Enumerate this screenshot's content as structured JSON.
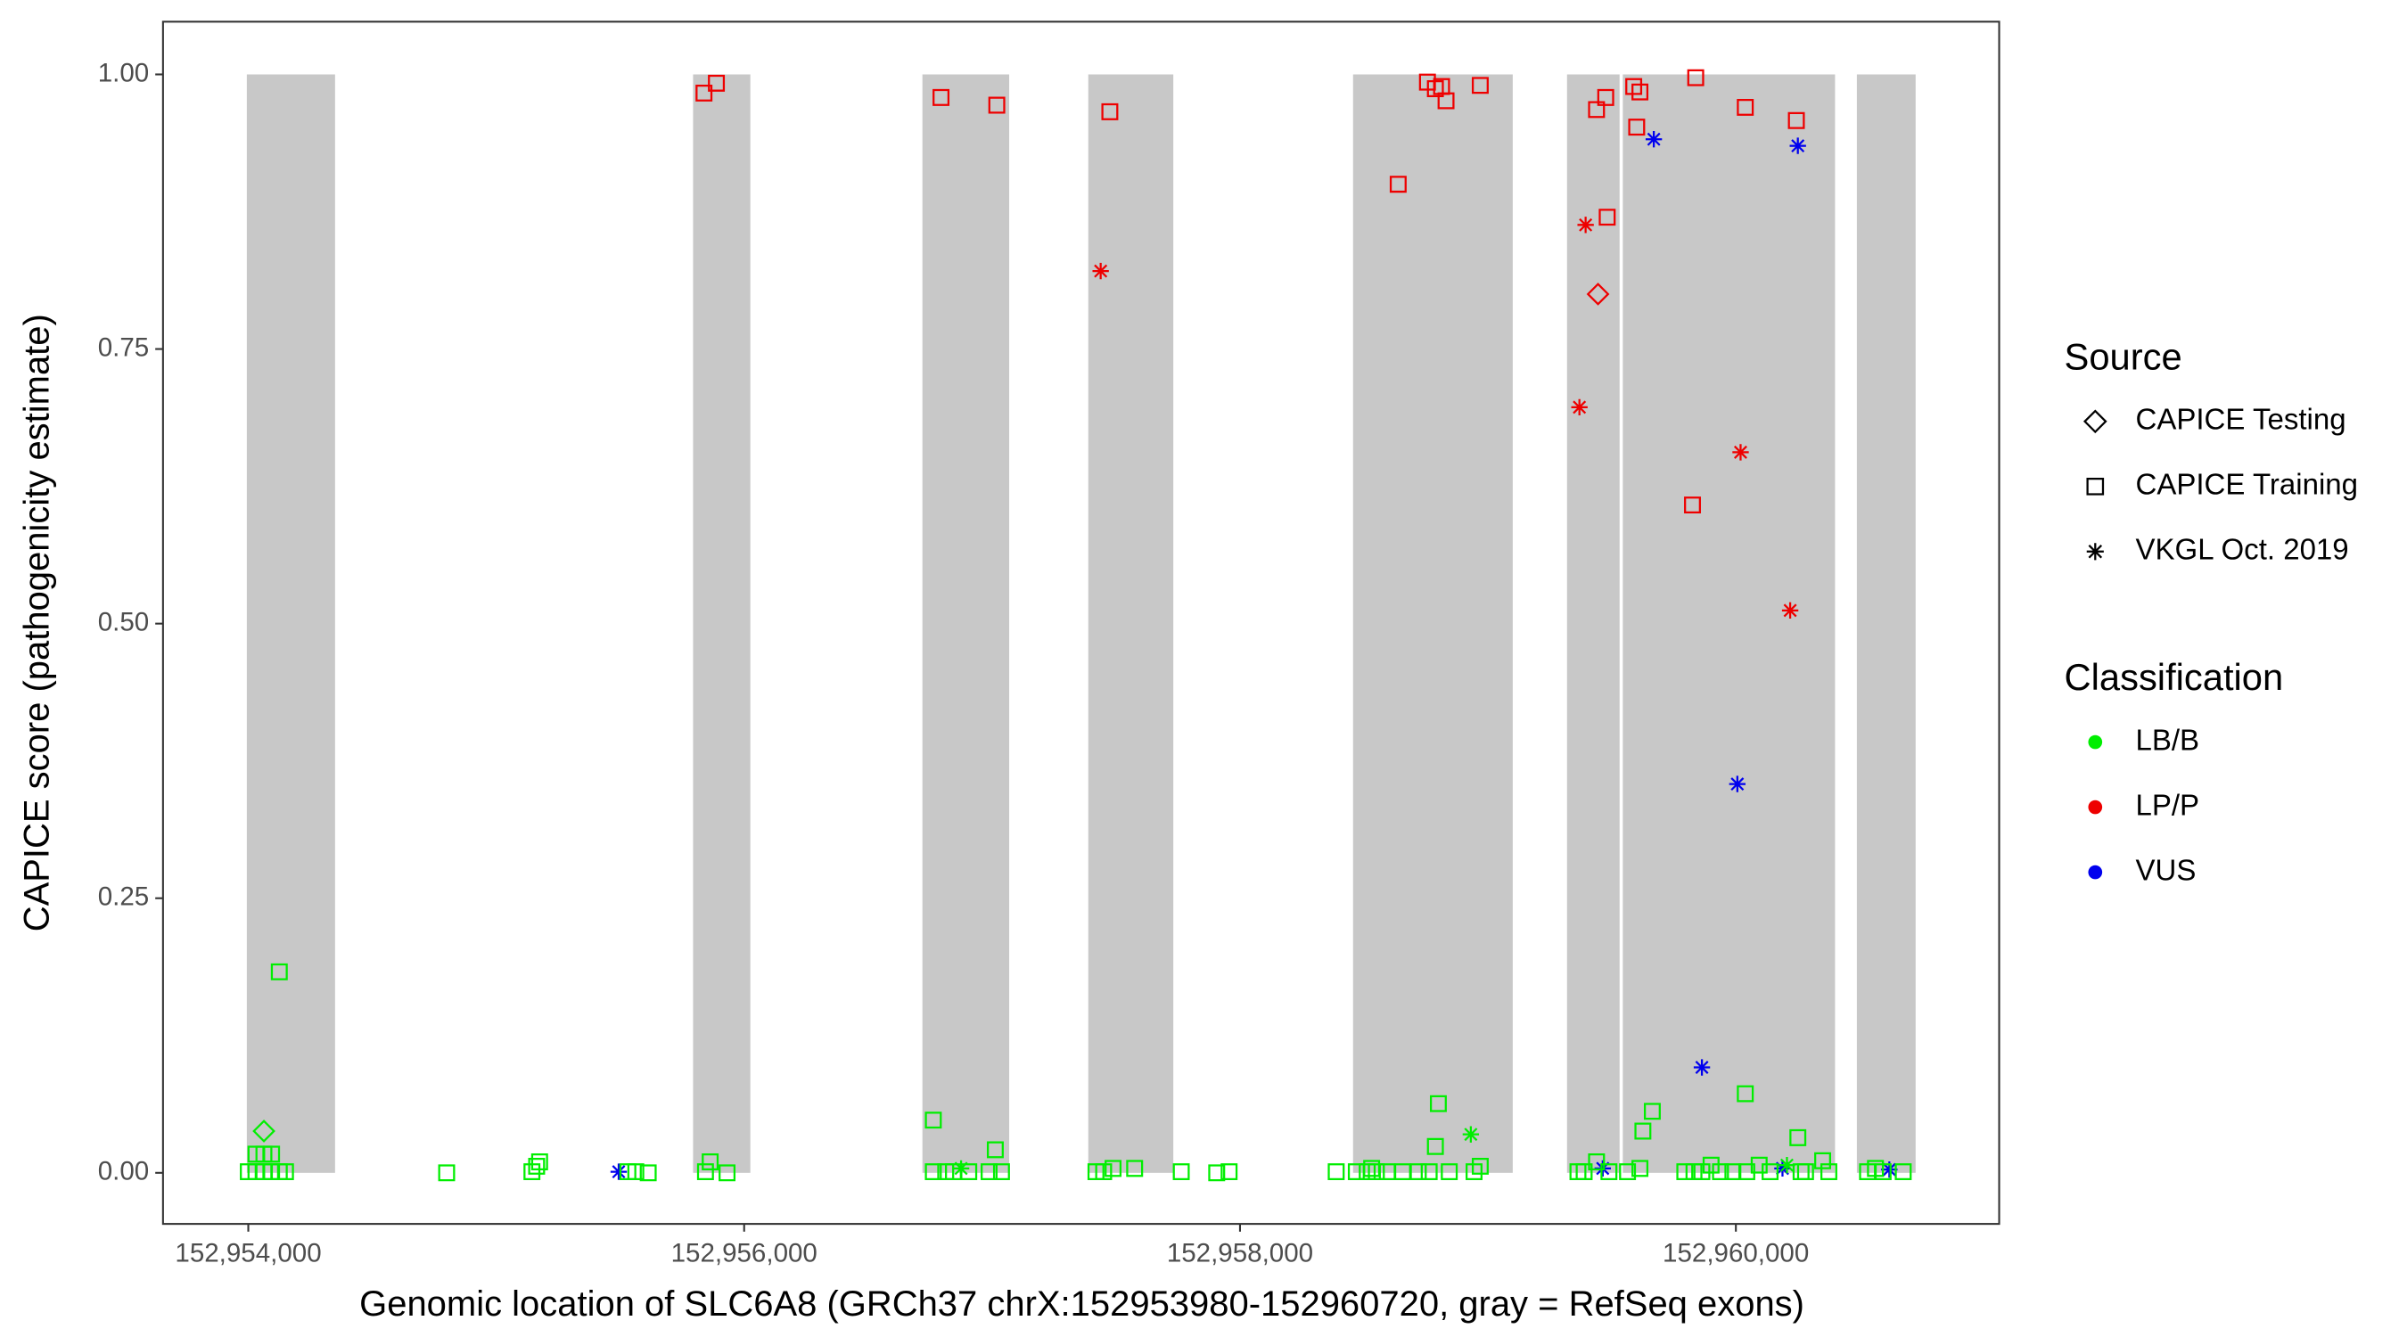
{
  "chart_data": {
    "type": "scatter",
    "xlabel": "Genomic location of SLC6A8 (GRCh37 chrX:152953980-152960720, gray = RefSeq exons)",
    "ylabel": "CAPICE score (pathogenicity estimate)",
    "xlim": [
      152953656,
      152961062
    ],
    "ylim": [
      -0.0465,
      1.048
    ],
    "xticks": [
      {
        "value": 152954000,
        "label": "152,954,000"
      },
      {
        "value": 152956000,
        "label": "152,956,000"
      },
      {
        "value": 152958000,
        "label": "152,958,000"
      },
      {
        "value": 152960000,
        "label": "152,960,000"
      }
    ],
    "yticks": [
      {
        "value": 0,
        "label": "0.00"
      },
      {
        "value": 0.25,
        "label": "0.25"
      },
      {
        "value": 0.5,
        "label": "0.50"
      },
      {
        "value": 0.75,
        "label": "0.75"
      },
      {
        "value": 1,
        "label": "1.00"
      }
    ],
    "exon_color": "#c8c8c8",
    "exons": [
      [
        152953994,
        152954350
      ],
      [
        152955794,
        152956025
      ],
      [
        152956719,
        152957069
      ],
      [
        152957388,
        152957731
      ],
      [
        152958456,
        152959100
      ],
      [
        152959319,
        152959531
      ],
      [
        152959544,
        152960400
      ],
      [
        152960488,
        152960725
      ]
    ],
    "legends": [
      {
        "title": "Source",
        "items": [
          {
            "label": "CAPICE Testing",
            "shape": "diamond"
          },
          {
            "label": "CAPICE Training",
            "shape": "square"
          },
          {
            "label": "VKGL Oct. 2019",
            "shape": "asterisk"
          }
        ]
      },
      {
        "title": "Classification",
        "items": [
          {
            "label": "LB/B",
            "color": "#00ee00"
          },
          {
            "label": "LP/P",
            "color": "#ee0000"
          },
          {
            "label": "VUS",
            "color": "#0000ee"
          }
        ]
      }
    ],
    "series": [
      {
        "shape": "square",
        "color": "#ee0000",
        "x": [
          152955838,
          152955888,
          152956794,
          152957019,
          152957475,
          152958638,
          152958756,
          152958788,
          152958813,
          152958831,
          152958969,
          152959438,
          152959475,
          152959481,
          152959588,
          152959613,
          152959600,
          152959838,
          152960038,
          152960244,
          152959825
        ],
        "values": [
          0.983,
          0.992,
          0.979,
          0.972,
          0.966,
          0.9,
          0.993,
          0.987,
          0.989,
          0.976,
          0.99,
          0.968,
          0.979,
          0.87,
          0.989,
          0.984,
          0.952,
          0.997,
          0.97,
          0.958,
          0.608
        ]
      },
      {
        "shape": "asterisk",
        "color": "#ee0000",
        "x": [
          152957438,
          152959394,
          152959369,
          152960019,
          152960219
        ],
        "values": [
          0.821,
          0.863,
          0.697,
          0.656,
          0.512
        ]
      },
      {
        "shape": "diamond",
        "color": "#ee0000",
        "x": [
          152959444
        ],
        "values": [
          0.8
        ]
      },
      {
        "shape": "asterisk",
        "color": "#0000ee",
        "x": [
          152959669,
          152960250,
          152960006,
          152959863,
          152955494,
          152959463,
          152960188,
          152960619
        ],
        "values": [
          0.941,
          0.935,
          0.354,
          0.096,
          0.001,
          0.004,
          0.004,
          0.003
        ]
      },
      {
        "shape": "asterisk",
        "color": "#00ee00",
        "x": [
          152958931,
          152956875,
          152960206
        ],
        "values": [
          0.035,
          0.004,
          0.007
        ]
      },
      {
        "shape": "diamond",
        "color": "#00ee00",
        "x": [
          152954063
        ],
        "values": [
          0.038
        ]
      },
      {
        "shape": "square",
        "color": "#00ee00",
        "x": [
          152954125,
          152954031,
          152954063,
          152954094,
          152954000,
          152954031,
          152954063,
          152954094,
          152954125,
          152954150,
          152954800,
          152955144,
          152955163,
          152955175,
          152955531,
          152955563,
          152955613,
          152955863,
          152955844,
          152955931,
          152956763,
          152956763,
          152956813,
          152956844,
          152956906,
          152956988,
          152957013,
          152957038,
          152957419,
          152957450,
          152957488,
          152957575,
          152957763,
          152957906,
          152957956,
          152958388,
          152958469,
          152958513,
          152958531,
          152958550,
          152958594,
          152958656,
          152958719,
          152958763,
          152958800,
          152958788,
          152958844,
          152958944,
          152958969,
          152959363,
          152959388,
          152959438,
          152959488,
          152959563,
          152959613,
          152959625,
          152959663,
          152959794,
          152959831,
          152959863,
          152959900,
          152959938,
          152959988,
          152960038,
          152960044,
          152960094,
          152960138,
          152960250,
          152960263,
          152960281,
          152960350,
          152960375,
          152960531,
          152960563,
          152960594,
          152960675
        ],
        "values": [
          0.183,
          0.017,
          0.017,
          0.017,
          0.001,
          0.001,
          0.001,
          0.001,
          0.001,
          0.001,
          0,
          0.001,
          0.006,
          0.01,
          0.001,
          0.001,
          0,
          0.01,
          0.001,
          0,
          0.048,
          0.001,
          0.001,
          0.001,
          0.001,
          0.001,
          0.021,
          0.001,
          0.001,
          0.001,
          0.004,
          0.004,
          0.001,
          0,
          0.001,
          0.001,
          0.001,
          0.001,
          0.004,
          0.001,
          0.001,
          0.001,
          0.001,
          0.001,
          0.063,
          0.024,
          0.001,
          0.001,
          0.006,
          0.001,
          0.001,
          0.01,
          0.001,
          0.001,
          0.004,
          0.038,
          0.056,
          0.001,
          0.001,
          0.001,
          0.007,
          0.001,
          0.001,
          0.072,
          0.001,
          0.007,
          0.001,
          0.032,
          0.001,
          0.001,
          0.011,
          0.001,
          0.001,
          0.004,
          0.001,
          0.001
        ]
      }
    ]
  }
}
